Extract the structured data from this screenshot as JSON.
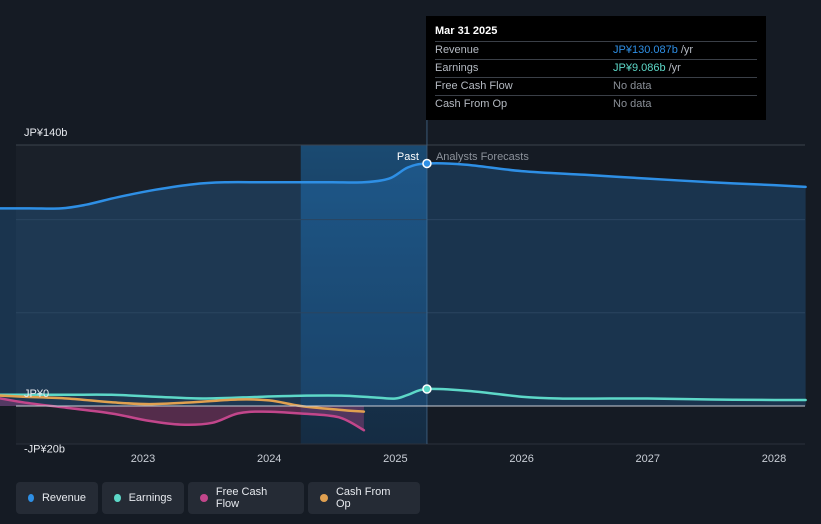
{
  "chart_data": {
    "type": "line",
    "y_unit_prefix": "JP¥",
    "y_unit_suffix": "b",
    "ylim": [
      -25,
      140
    ],
    "y_tick_labels": [
      {
        "value": 140,
        "label": "JP¥140b"
      },
      {
        "value": 0,
        "label": "JP¥0"
      },
      {
        "value": -20,
        "label": "-JP¥20b"
      }
    ],
    "x_ticks": [
      {
        "year": 2023,
        "label": "2023"
      },
      {
        "year": 2024,
        "label": "2024"
      },
      {
        "year": 2025,
        "label": "2025"
      },
      {
        "year": 2026,
        "label": "2026"
      },
      {
        "year": 2027,
        "label": "2027"
      },
      {
        "year": 2028,
        "label": "2028"
      }
    ],
    "xlim": [
      2021.5,
      2028.25
    ],
    "past_label": "Past",
    "forecast_label": "Analysts Forecasts",
    "past_end": 2025.25,
    "shade_start": 2024.25,
    "series": [
      {
        "name": "Revenue",
        "color": "#2e8fe5",
        "fill": true,
        "dashed_forecast": false,
        "points": [
          [
            2021.75,
            106
          ],
          [
            2022.1,
            106
          ],
          [
            2022.35,
            106
          ],
          [
            2022.55,
            108
          ],
          [
            2022.8,
            112
          ],
          [
            2023.1,
            116
          ],
          [
            2023.4,
            119
          ],
          [
            2023.65,
            120
          ],
          [
            2023.95,
            120
          ],
          [
            2024.25,
            120
          ],
          [
            2024.5,
            120
          ],
          [
            2024.75,
            120
          ],
          [
            2024.95,
            122
          ],
          [
            2025.1,
            128
          ],
          [
            2025.25,
            130.1
          ],
          [
            2025.55,
            129.5
          ],
          [
            2026.0,
            126
          ],
          [
            2026.5,
            124
          ],
          [
            2027.0,
            122
          ],
          [
            2027.5,
            120
          ],
          [
            2028.0,
            118.5
          ],
          [
            2028.25,
            117.5
          ]
        ]
      },
      {
        "name": "Earnings",
        "color": "#5dd8c8",
        "fill": false,
        "points": [
          [
            2021.75,
            6
          ],
          [
            2022.0,
            6
          ],
          [
            2022.4,
            6
          ],
          [
            2022.75,
            6
          ],
          [
            2023.1,
            5
          ],
          [
            2023.5,
            4
          ],
          [
            2023.95,
            5
          ],
          [
            2024.25,
            5.5
          ],
          [
            2024.6,
            5.5
          ],
          [
            2024.85,
            4.5
          ],
          [
            2025.0,
            4
          ],
          [
            2025.1,
            6
          ],
          [
            2025.25,
            9.1
          ],
          [
            2025.6,
            8
          ],
          [
            2026.0,
            5
          ],
          [
            2026.3,
            4
          ],
          [
            2026.7,
            4
          ],
          [
            2027.0,
            4
          ],
          [
            2027.5,
            3.5
          ],
          [
            2028.0,
            3.2
          ],
          [
            2028.25,
            3.2
          ]
        ]
      },
      {
        "name": "Free Cash Flow",
        "color": "#c2468b",
        "fill": true,
        "points": [
          [
            2021.75,
            5.5
          ],
          [
            2022.05,
            2
          ],
          [
            2022.4,
            -1
          ],
          [
            2022.75,
            -4
          ],
          [
            2023.05,
            -8
          ],
          [
            2023.3,
            -10
          ],
          [
            2023.55,
            -9
          ],
          [
            2023.75,
            -4
          ],
          [
            2023.95,
            -3
          ],
          [
            2024.25,
            -4
          ],
          [
            2024.55,
            -6
          ],
          [
            2024.75,
            -13
          ]
        ]
      },
      {
        "name": "Cash From Op",
        "color": "#e0a050",
        "fill": false,
        "points": [
          [
            2021.75,
            6
          ],
          [
            2022.05,
            5
          ],
          [
            2022.4,
            4
          ],
          [
            2022.75,
            2
          ],
          [
            2023.05,
            1
          ],
          [
            2023.4,
            2
          ],
          [
            2023.75,
            3.5
          ],
          [
            2024.0,
            3
          ],
          [
            2024.25,
            0
          ],
          [
            2024.55,
            -2
          ],
          [
            2024.75,
            -3
          ]
        ]
      }
    ],
    "highlight_point": {
      "x": 2025.25,
      "revenue": 130.1,
      "earnings": 9.1
    }
  },
  "tooltip": {
    "date": "Mar 31 2025",
    "rows": [
      {
        "label": "Revenue",
        "value": "JP¥130.087b",
        "unit": "/yr",
        "color": "#2e8fe5"
      },
      {
        "label": "Earnings",
        "value": "JP¥9.086b",
        "unit": "/yr",
        "color": "#5dd8c8"
      },
      {
        "label": "Free Cash Flow",
        "value": "No data",
        "unit": "",
        "color": ""
      },
      {
        "label": "Cash From Op",
        "value": "No data",
        "unit": "",
        "color": ""
      }
    ]
  },
  "legend": [
    {
      "label": "Revenue",
      "color": "#2e8fe5"
    },
    {
      "label": "Earnings",
      "color": "#5dd8c8"
    },
    {
      "label": "Free Cash Flow",
      "color": "#c2468b"
    },
    {
      "label": "Cash From Op",
      "color": "#e0a050"
    }
  ]
}
